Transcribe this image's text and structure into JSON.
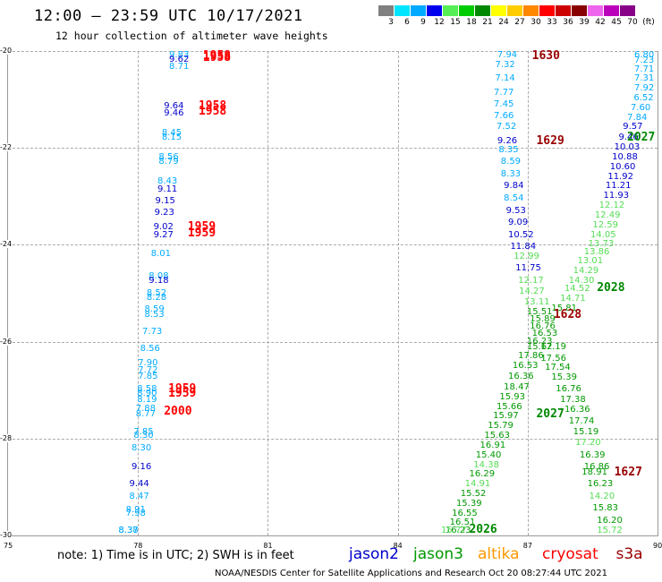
{
  "header": {
    "title": "12:00 — 23:59 UTC 10/17/2021",
    "subtitle": "12 hour collection of altimeter wave heights"
  },
  "legend": {
    "unit": "(ft)",
    "bins": [
      {
        "label": "3",
        "color": "#808080"
      },
      {
        "label": "6",
        "color": "#00e5ff"
      },
      {
        "label": "9",
        "color": "#00aaff"
      },
      {
        "label": "12",
        "color": "#0000ee"
      },
      {
        "label": "15",
        "color": "#55ee55"
      },
      {
        "label": "18",
        "color": "#00cc00"
      },
      {
        "label": "21",
        "color": "#008800"
      },
      {
        "label": "24",
        "color": "#ffff00"
      },
      {
        "label": "27",
        "color": "#ffcc00"
      },
      {
        "label": "30",
        "color": "#ff8800"
      },
      {
        "label": "33",
        "color": "#ff0000"
      },
      {
        "label": "36",
        "color": "#cc0000"
      },
      {
        "label": "39",
        "color": "#880000"
      },
      {
        "label": "42",
        "color": "#ee66ee"
      },
      {
        "label": "45",
        "color": "#bb00bb"
      },
      {
        "label": "70",
        "color": "#880088"
      }
    ]
  },
  "axes": {
    "lat_labels": [
      "-20",
      "-22",
      "-24",
      "-26",
      "-28",
      "-30"
    ],
    "lon_labels": [
      "75",
      "78",
      "81",
      "84",
      "87",
      "90"
    ],
    "lat_range": [
      -30,
      -20
    ],
    "lon_range": [
      75,
      90
    ]
  },
  "colors": {
    "c1": "#00aaff",
    "c2": "#0000cc",
    "c3": "#55dd55",
    "c4": "#009900",
    "red": "#ff0000",
    "maroon": "#990000",
    "dgreen": "#008800"
  },
  "tracks": {
    "west": [
      {
        "v": "9.83",
        "lon": 78.72,
        "lat": -20.05,
        "c": "c1"
      },
      {
        "v": "9.62",
        "lon": 78.72,
        "lat": -20.18,
        "c": "c2"
      },
      {
        "v": "8.71",
        "lon": 78.72,
        "lat": -20.34,
        "c": "c1"
      },
      {
        "v": "9.64",
        "lon": 78.6,
        "lat": -21.15,
        "c": "c2"
      },
      {
        "v": "9.46",
        "lon": 78.6,
        "lat": -21.3,
        "c": "c2"
      },
      {
        "v": "8.45",
        "lon": 78.55,
        "lat": -21.7,
        "c": "c1"
      },
      {
        "v": "8.15",
        "lon": 78.55,
        "lat": -21.8,
        "c": "c1"
      },
      {
        "v": "8.56",
        "lon": 78.48,
        "lat": -22.2,
        "c": "c1"
      },
      {
        "v": "8.79",
        "lon": 78.48,
        "lat": -22.3,
        "c": "c1"
      },
      {
        "v": "8.43",
        "lon": 78.45,
        "lat": -22.7,
        "c": "c1"
      },
      {
        "v": "9.11",
        "lon": 78.45,
        "lat": -22.86,
        "c": "c2"
      },
      {
        "v": "9.15",
        "lon": 78.4,
        "lat": -23.1,
        "c": "c2"
      },
      {
        "v": "9.23",
        "lon": 78.38,
        "lat": -23.35,
        "c": "c2"
      },
      {
        "v": "9.02",
        "lon": 78.36,
        "lat": -23.65,
        "c": "c2"
      },
      {
        "v": "9.27",
        "lon": 78.36,
        "lat": -23.8,
        "c": "c2"
      },
      {
        "v": "8.01",
        "lon": 78.3,
        "lat": -24.2,
        "c": "c1"
      },
      {
        "v": "8.08",
        "lon": 78.25,
        "lat": -24.65,
        "c": "c1"
      },
      {
        "v": "9.18",
        "lon": 78.25,
        "lat": -24.75,
        "c": "c2"
      },
      {
        "v": "8.52",
        "lon": 78.2,
        "lat": -25.0,
        "c": "c1"
      },
      {
        "v": "8.28",
        "lon": 78.2,
        "lat": -25.1,
        "c": "c1"
      },
      {
        "v": "8.59",
        "lon": 78.15,
        "lat": -25.35,
        "c": "c1"
      },
      {
        "v": "8.53",
        "lon": 78.15,
        "lat": -25.45,
        "c": "c1"
      },
      {
        "v": "7.73",
        "lon": 78.1,
        "lat": -25.8,
        "c": "c1"
      },
      {
        "v": "8.56",
        "lon": 78.05,
        "lat": -26.15,
        "c": "c1"
      },
      {
        "v": "7.90",
        "lon": 78.0,
        "lat": -26.45,
        "c": "c1"
      },
      {
        "v": "7.72",
        "lon": 78.0,
        "lat": -26.6,
        "c": "c1"
      },
      {
        "v": "7.85",
        "lon": 78.0,
        "lat": -26.72,
        "c": "c1"
      },
      {
        "v": "8.58",
        "lon": 77.98,
        "lat": -26.98,
        "c": "c1"
      },
      {
        "v": "8.90",
        "lon": 77.98,
        "lat": -27.08,
        "c": "c1"
      },
      {
        "v": "8.19",
        "lon": 77.98,
        "lat": -27.2,
        "c": "c1"
      },
      {
        "v": "7.88",
        "lon": 77.95,
        "lat": -27.4,
        "c": "c1"
      },
      {
        "v": "8.77",
        "lon": 77.95,
        "lat": -27.5,
        "c": "c1"
      },
      {
        "v": "7.85",
        "lon": 77.9,
        "lat": -27.88,
        "c": "c1"
      },
      {
        "v": "8.30",
        "lon": 77.9,
        "lat": -27.95,
        "c": "c1"
      },
      {
        "v": "8.30",
        "lon": 77.85,
        "lat": -28.2,
        "c": "c1"
      },
      {
        "v": "9.16",
        "lon": 77.85,
        "lat": -28.6,
        "c": "c2"
      },
      {
        "v": "9.44",
        "lon": 77.8,
        "lat": -28.95,
        "c": "c2"
      },
      {
        "v": "8.47",
        "lon": 77.8,
        "lat": -29.2,
        "c": "c1"
      },
      {
        "v": "8.91",
        "lon": 77.72,
        "lat": -29.48,
        "c": "c1"
      },
      {
        "v": "7.98",
        "lon": 77.72,
        "lat": -29.56,
        "c": "c1"
      },
      {
        "v": "8.37",
        "lon": 77.55,
        "lat": -29.92,
        "c": "c1"
      },
      {
        "v": "8.38",
        "lon": 77.55,
        "lat": -30.02,
        "c": "c1"
      }
    ],
    "center": [
      {
        "v": "7.94",
        "lon": 86.3,
        "lat": -20.05,
        "c": "c1"
      },
      {
        "v": "7.32",
        "lon": 86.25,
        "lat": -20.3,
        "c": "c1"
      },
      {
        "v": "7.14",
        "lon": 86.25,
        "lat": -20.58,
        "c": "c1"
      },
      {
        "v": "7.77",
        "lon": 86.22,
        "lat": -20.86,
        "c": "c1"
      },
      {
        "v": "7.45",
        "lon": 86.22,
        "lat": -21.1,
        "c": "c1"
      },
      {
        "v": "7.66",
        "lon": 86.22,
        "lat": -21.35,
        "c": "c1"
      },
      {
        "v": "7.52",
        "lon": 86.28,
        "lat": -21.58,
        "c": "c1"
      },
      {
        "v": "9.26",
        "lon": 86.3,
        "lat": -21.86,
        "c": "c2"
      },
      {
        "v": "8.35",
        "lon": 86.33,
        "lat": -22.05,
        "c": "c1"
      },
      {
        "v": "8.59",
        "lon": 86.38,
        "lat": -22.3,
        "c": "c1"
      },
      {
        "v": "8.33",
        "lon": 86.38,
        "lat": -22.55,
        "c": "c1"
      },
      {
        "v": "9.84",
        "lon": 86.45,
        "lat": -22.8,
        "c": "c2"
      },
      {
        "v": "8.54",
        "lon": 86.45,
        "lat": -23.05,
        "c": "c1"
      },
      {
        "v": "9.53",
        "lon": 86.5,
        "lat": -23.3,
        "c": "c2"
      },
      {
        "v": "9.09",
        "lon": 86.55,
        "lat": -23.55,
        "c": "c2"
      },
      {
        "v": "10.52",
        "lon": 86.55,
        "lat": -23.8,
        "c": "c2"
      },
      {
        "v": "11.84",
        "lon": 86.6,
        "lat": -24.05,
        "c": "c2"
      },
      {
        "v": "12.99",
        "lon": 86.68,
        "lat": -24.25,
        "c": "c3"
      },
      {
        "v": "11.75",
        "lon": 86.72,
        "lat": -24.5,
        "c": "c2"
      },
      {
        "v": "12.17",
        "lon": 86.78,
        "lat": -24.75,
        "c": "c3"
      },
      {
        "v": "14.27",
        "lon": 86.8,
        "lat": -24.98,
        "c": "c3"
      },
      {
        "v": "13.11",
        "lon": 86.92,
        "lat": -25.2,
        "c": "c3"
      },
      {
        "v": "15.51",
        "lon": 86.98,
        "lat": -25.4,
        "c": "c4"
      },
      {
        "v": "15.89",
        "lon": 87.05,
        "lat": -25.55,
        "c": "c4"
      },
      {
        "v": "16.76",
        "lon": 87.05,
        "lat": -25.7,
        "c": "c4"
      },
      {
        "v": "16.53",
        "lon": 87.1,
        "lat": -25.85,
        "c": "c4"
      },
      {
        "v": "16.23",
        "lon": 86.98,
        "lat": -26.0,
        "c": "c4"
      },
      {
        "v": "15.62",
        "lon": 86.98,
        "lat": -26.12,
        "c": "c4"
      },
      {
        "v": "17.86",
        "lon": 86.78,
        "lat": -26.3,
        "c": "c4"
      },
      {
        "v": "16.53",
        "lon": 86.65,
        "lat": -26.5,
        "c": "c4"
      },
      {
        "v": "16.36",
        "lon": 86.55,
        "lat": -26.72,
        "c": "c4"
      },
      {
        "v": "18.47",
        "lon": 86.45,
        "lat": -26.95,
        "c": "c4"
      },
      {
        "v": "15.93",
        "lon": 86.35,
        "lat": -27.15,
        "c": "c4"
      },
      {
        "v": "15.66",
        "lon": 86.28,
        "lat": -27.35,
        "c": "c4"
      },
      {
        "v": "15.97",
        "lon": 86.2,
        "lat": -27.55,
        "c": "c4"
      },
      {
        "v": "15.79",
        "lon": 86.08,
        "lat": -27.75,
        "c": "c4"
      },
      {
        "v": "15.63",
        "lon": 86.0,
        "lat": -27.95,
        "c": "c4"
      },
      {
        "v": "16.91",
        "lon": 85.9,
        "lat": -28.15,
        "c": "c4"
      },
      {
        "v": "15.40",
        "lon": 85.8,
        "lat": -28.35,
        "c": "c4"
      },
      {
        "v": "14.38",
        "lon": 85.75,
        "lat": -28.55,
        "c": "c3"
      },
      {
        "v": "16.29",
        "lon": 85.65,
        "lat": -28.75,
        "c": "c4"
      },
      {
        "v": "14.91",
        "lon": 85.55,
        "lat": -28.95,
        "c": "c3"
      },
      {
        "v": "15.52",
        "lon": 85.45,
        "lat": -29.15,
        "c": "c4"
      },
      {
        "v": "15.39",
        "lon": 85.35,
        "lat": -29.35,
        "c": "c4"
      },
      {
        "v": "16.55",
        "lon": 85.25,
        "lat": -29.55,
        "c": "c4"
      },
      {
        "v": "16.51",
        "lon": 85.2,
        "lat": -29.75,
        "c": "c4"
      },
      {
        "v": "16.23",
        "lon": 85.1,
        "lat": -29.92,
        "c": "c4"
      },
      {
        "v": "15.77",
        "lon": 85.0,
        "lat": -30.1,
        "c": "c3"
      }
    ],
    "east": [
      {
        "v": "6.80",
        "lon": 89.85,
        "lat": -20.05,
        "c": "c1"
      },
      {
        "v": "7.23",
        "lon": 89.8,
        "lat": -20.2,
        "c": "c1"
      },
      {
        "v": "7.71",
        "lon": 89.72,
        "lat": -20.38,
        "c": "c1"
      },
      {
        "v": "7.31",
        "lon": 89.65,
        "lat": -20.58,
        "c": "c1"
      },
      {
        "v": "7.92",
        "lon": 89.55,
        "lat": -20.78,
        "c": "c1"
      },
      {
        "v": "6.52",
        "lon": 89.45,
        "lat": -20.98,
        "c": "c1"
      },
      {
        "v": "7.60",
        "lon": 89.38,
        "lat": -21.18,
        "c": "c1"
      },
      {
        "v": "7.84",
        "lon": 89.3,
        "lat": -21.38,
        "c": "c1"
      },
      {
        "v": "9.57",
        "lon": 89.2,
        "lat": -21.58,
        "c": "c2"
      },
      {
        "v": "9.46",
        "lon": 89.1,
        "lat": -21.8,
        "c": "c2"
      },
      {
        "v": "10.03",
        "lon": 89.0,
        "lat": -22.0,
        "c": "c2"
      },
      {
        "v": "10.88",
        "lon": 88.95,
        "lat": -22.2,
        "c": "c2"
      },
      {
        "v": "10.60",
        "lon": 88.9,
        "lat": -22.4,
        "c": "c2"
      },
      {
        "v": "11.92",
        "lon": 88.85,
        "lat": -22.6,
        "c": "c2"
      },
      {
        "v": "11.21",
        "lon": 88.8,
        "lat": -22.8,
        "c": "c2"
      },
      {
        "v": "11.93",
        "lon": 88.75,
        "lat": -23.0,
        "c": "c2"
      },
      {
        "v": "12.12",
        "lon": 88.65,
        "lat": -23.2,
        "c": "c3"
      },
      {
        "v": "12.49",
        "lon": 88.55,
        "lat": -23.4,
        "c": "c3"
      },
      {
        "v": "12.59",
        "lon": 88.5,
        "lat": -23.6,
        "c": "c3"
      },
      {
        "v": "14.05",
        "lon": 88.45,
        "lat": -23.8,
        "c": "c3"
      },
      {
        "v": "13.73",
        "lon": 88.4,
        "lat": -24.0,
        "c": "c3"
      },
      {
        "v": "13.86",
        "lon": 88.3,
        "lat": -24.15,
        "c": "c3"
      },
      {
        "v": "13.01",
        "lon": 88.15,
        "lat": -24.35,
        "c": "c3"
      },
      {
        "v": "14.29",
        "lon": 88.05,
        "lat": -24.55,
        "c": "c3"
      },
      {
        "v": "14.30",
        "lon": 87.95,
        "lat": -24.75,
        "c": "c3"
      },
      {
        "v": "14.52",
        "lon": 87.85,
        "lat": -24.92,
        "c": "c3"
      },
      {
        "v": "14.71",
        "lon": 87.75,
        "lat": -25.12,
        "c": "c3"
      },
      {
        "v": "15.81",
        "lon": 87.55,
        "lat": -25.32,
        "c": "c4"
      },
      {
        "v": "17.19",
        "lon": 87.3,
        "lat": -26.12,
        "c": "c4"
      },
      {
        "v": "17.56",
        "lon": 87.3,
        "lat": -26.35,
        "c": "c4"
      },
      {
        "v": "17.54",
        "lon": 87.4,
        "lat": -26.55,
        "c": "c4"
      },
      {
        "v": "15.39",
        "lon": 87.55,
        "lat": -26.75,
        "c": "c4"
      },
      {
        "v": "16.76",
        "lon": 87.65,
        "lat": -26.98,
        "c": "c4"
      },
      {
        "v": "17.38",
        "lon": 87.75,
        "lat": -27.2,
        "c": "c4"
      },
      {
        "v": "16.36",
        "lon": 87.85,
        "lat": -27.42,
        "c": "c4"
      },
      {
        "v": "17.74",
        "lon": 87.95,
        "lat": -27.65,
        "c": "c4"
      },
      {
        "v": "15.19",
        "lon": 88.05,
        "lat": -27.88,
        "c": "c4"
      },
      {
        "v": "17.20",
        "lon": 88.1,
        "lat": -28.1,
        "c": "c3"
      },
      {
        "v": "16.39",
        "lon": 88.2,
        "lat": -28.35,
        "c": "c4"
      },
      {
        "v": "16.86",
        "lon": 88.3,
        "lat": -28.6,
        "c": "c4"
      },
      {
        "v": "18.91",
        "lon": 88.25,
        "lat": -28.7,
        "c": "c4"
      },
      {
        "v": "16.23",
        "lon": 88.38,
        "lat": -28.95,
        "c": "c4"
      },
      {
        "v": "14.20",
        "lon": 88.42,
        "lat": -29.2,
        "c": "c3"
      },
      {
        "v": "15.83",
        "lon": 88.5,
        "lat": -29.45,
        "c": "c4"
      },
      {
        "v": "16.20",
        "lon": 88.6,
        "lat": -29.7,
        "c": "c4"
      },
      {
        "v": "15.72",
        "lon": 88.6,
        "lat": -29.95,
        "c": "c3"
      }
    ],
    "times": [
      {
        "t": "1958",
        "lon": 79.5,
        "lat": -20.05,
        "c": "red"
      },
      {
        "t": "1958",
        "lon": 79.5,
        "lat": -20.14,
        "c": "red"
      },
      {
        "t": "1958",
        "lon": 79.4,
        "lat": -21.15,
        "c": "red"
      },
      {
        "t": "1958",
        "lon": 79.4,
        "lat": -21.25,
        "c": "red"
      },
      {
        "t": "1959",
        "lon": 79.15,
        "lat": -23.65,
        "c": "red"
      },
      {
        "t": "1959",
        "lon": 79.15,
        "lat": -23.78,
        "c": "red"
      },
      {
        "t": "1959",
        "lon": 78.7,
        "lat": -26.98,
        "c": "red"
      },
      {
        "t": "1959",
        "lon": 78.7,
        "lat": -27.08,
        "c": "red"
      },
      {
        "t": "2000",
        "lon": 78.6,
        "lat": -27.45,
        "c": "red"
      },
      {
        "t": "1630",
        "lon": 87.1,
        "lat": -20.05,
        "c": "maroon"
      },
      {
        "t": "1629",
        "lon": 87.2,
        "lat": -21.86,
        "c": "maroon"
      },
      {
        "t": "2027",
        "lon": 89.75,
        "lat": -21.8,
        "c": "dgreen"
      },
      {
        "t": "2028",
        "lon": 88.6,
        "lat": -24.9,
        "c": "dgreen"
      },
      {
        "t": "1628",
        "lon": 87.6,
        "lat": -25.45,
        "c": "maroon"
      },
      {
        "t": "2027",
        "lon": 87.2,
        "lat": -27.5,
        "c": "dgreen"
      },
      {
        "t": "1627",
        "lon": 89.0,
        "lat": -28.7,
        "c": "maroon"
      },
      {
        "t": "2026",
        "lon": 85.65,
        "lat": -30.05,
        "c": "dgreen"
      }
    ]
  },
  "footer": {
    "note": "note: 1) Time is in UTC; 2) SWH is in feet",
    "credit": "NOAA/NESDIS Center for Satellite Applications and Research   Oct 20 08:27:44 UTC 2021",
    "satellites": [
      {
        "name": "jason2",
        "color": "#0000cc"
      },
      {
        "name": "jason3",
        "color": "#009900"
      },
      {
        "name": "altika",
        "color": "#ff9900"
      },
      {
        "name": "cryosat",
        "color": "#ff0000"
      },
      {
        "name": "s3a",
        "color": "#990000"
      }
    ]
  }
}
